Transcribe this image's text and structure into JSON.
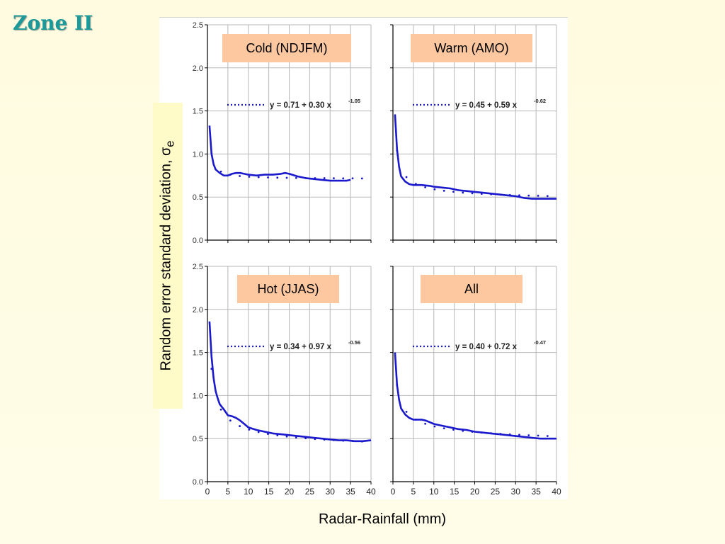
{
  "title": "Zone II",
  "chart_data": {
    "type": "line",
    "ylabel": "Random error standard deviation, σe",
    "ylabel_main": "Random error standard deviation, ",
    "ylabel_symbol": "σ",
    "ylabel_sub": "e",
    "xlabel": "Radar-Rainfall (mm)",
    "xlim": [
      0,
      40
    ],
    "ylim": [
      0,
      2.5
    ],
    "xticks": [
      0,
      5,
      10,
      15,
      20,
      25,
      30,
      35,
      40
    ],
    "yticks": [
      "0.0",
      "0.5",
      "1.0",
      "1.5",
      "2.0",
      "2.5"
    ],
    "grid": true,
    "panels": [
      {
        "label": "Cold (NDJFM)",
        "fit": {
          "a": 0.71,
          "b": 0.3,
          "c": -1.05
        },
        "fit_text": "y = 0.71 + 0.30 x",
        "fit_exp": "-1.05",
        "empirical": {
          "x": [
            0.5,
            1,
            1.5,
            2,
            3,
            4,
            5,
            6,
            7,
            8,
            9,
            10,
            12,
            14,
            16,
            18,
            19,
            20,
            22,
            24,
            26,
            28,
            30,
            32,
            34,
            35
          ],
          "y": [
            1.33,
            1.0,
            0.88,
            0.82,
            0.78,
            0.75,
            0.75,
            0.77,
            0.78,
            0.78,
            0.77,
            0.76,
            0.75,
            0.76,
            0.76,
            0.77,
            0.78,
            0.77,
            0.74,
            0.72,
            0.71,
            0.7,
            0.69,
            0.69,
            0.69,
            0.7
          ]
        },
        "boxed_label": true
      },
      {
        "label": "Warm (AMO)",
        "fit": {
          "a": 0.45,
          "b": 0.59,
          "c": -0.62
        },
        "fit_text": "y = 0.45 + 0.59 x",
        "fit_exp": "-0.62",
        "empirical": {
          "x": [
            0.5,
            1,
            1.5,
            2,
            3,
            4,
            5,
            7,
            9,
            10,
            12,
            14,
            16,
            18,
            20,
            22,
            24,
            26,
            28,
            30,
            32,
            34,
            36,
            38,
            40
          ],
          "y": [
            1.46,
            1.05,
            0.85,
            0.74,
            0.68,
            0.65,
            0.64,
            0.64,
            0.63,
            0.62,
            0.61,
            0.6,
            0.58,
            0.57,
            0.56,
            0.55,
            0.54,
            0.53,
            0.52,
            0.51,
            0.49,
            0.48,
            0.48,
            0.48,
            0.48
          ]
        },
        "boxed_label": true
      },
      {
        "label": "Hot (JJAS)",
        "fit": {
          "a": 0.34,
          "b": 0.97,
          "c": -0.56
        },
        "fit_text": "y = 0.34 + 0.97 x",
        "fit_exp": "-0.56",
        "empirical": {
          "x": [
            0.5,
            1,
            1.5,
            2,
            2.5,
            3,
            4,
            5,
            6,
            7,
            8,
            9,
            10,
            12,
            14,
            16,
            18,
            20,
            22,
            24,
            26,
            28,
            30,
            32,
            34,
            36,
            38,
            40
          ],
          "y": [
            1.86,
            1.45,
            1.2,
            1.05,
            0.97,
            0.9,
            0.84,
            0.77,
            0.76,
            0.74,
            0.71,
            0.67,
            0.63,
            0.6,
            0.58,
            0.56,
            0.55,
            0.54,
            0.53,
            0.52,
            0.51,
            0.5,
            0.49,
            0.48,
            0.48,
            0.47,
            0.47,
            0.48
          ]
        },
        "boxed_label": true
      },
      {
        "label": "All",
        "fit": {
          "a": 0.4,
          "b": 0.72,
          "c": -0.47
        },
        "fit_text": "y = 0.40 + 0.72 x",
        "fit_exp": "-0.47",
        "empirical": {
          "x": [
            0.5,
            1,
            1.5,
            2,
            3,
            4,
            5,
            6,
            7,
            8,
            9,
            10,
            12,
            14,
            16,
            18,
            20,
            22,
            24,
            26,
            28,
            30,
            32,
            34,
            36,
            38,
            40
          ],
          "y": [
            1.5,
            1.12,
            0.95,
            0.85,
            0.78,
            0.74,
            0.72,
            0.72,
            0.72,
            0.71,
            0.69,
            0.67,
            0.65,
            0.63,
            0.61,
            0.6,
            0.58,
            0.57,
            0.56,
            0.55,
            0.54,
            0.53,
            0.52,
            0.51,
            0.5,
            0.5,
            0.5
          ]
        },
        "boxed_label": true
      }
    ]
  },
  "colors": {
    "title": "#1a9a9a",
    "line": "#1a1acc",
    "box": "#fdc8a0",
    "ylabel_box": "#fffbc8"
  }
}
